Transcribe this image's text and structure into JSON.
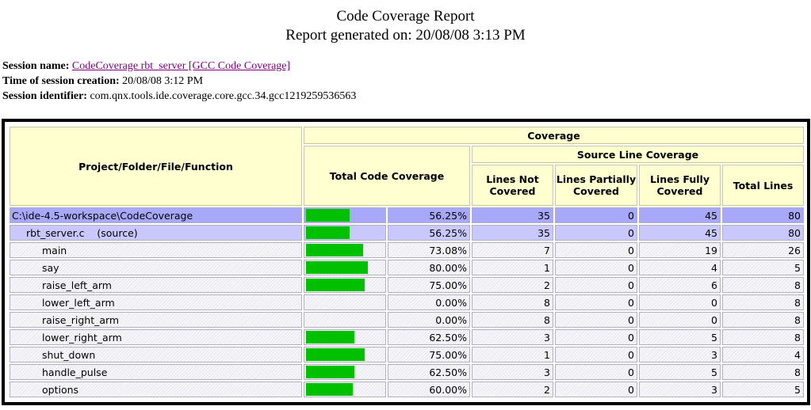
{
  "header": {
    "title": "Code Coverage Report",
    "generated": "Report generated on: 20/08/08 3:13 PM"
  },
  "session": {
    "name_label": "Session name:",
    "name": "CodeCoverage rbt_server [GCC Code Coverage]",
    "time_label": "Time of session creation:",
    "time": "20/08/08 3:12 PM",
    "id_label": "Session identifier:",
    "id": "com.qnx.tools.ide.coverage.core.gcc.34.gcc1219259536563"
  },
  "table": {
    "headers": {
      "project": "Project/Folder/File/Function",
      "coverage": "Coverage",
      "source": "Source Line Coverage",
      "total_coverage": "Total Code Coverage",
      "not_covered": "Lines Not Covered",
      "partial": "Lines Partially Covered",
      "fully": "Lines Fully Covered",
      "total": "Total Lines"
    },
    "rows": [
      {
        "name": "C:\\ide-4.5-workspace\\CodeCoverage",
        "coverage": {
          "value": 56.25,
          "label": "56.25%"
        },
        "not_covered": 35,
        "partial": 0,
        "fully": 45,
        "total": 80
      },
      {
        "name": "rbt_server.c    (source)",
        "coverage": {
          "value": 56.25,
          "label": "56.25%"
        },
        "not_covered": 35,
        "partial": 0,
        "fully": 45,
        "total": 80
      },
      {
        "name": "main",
        "coverage": {
          "value": 73.08,
          "label": "73.08%"
        },
        "not_covered": 7,
        "partial": 0,
        "fully": 19,
        "total": 26
      },
      {
        "name": "say",
        "coverage": {
          "value": 80,
          "label": "80.00%"
        },
        "not_covered": 1,
        "partial": 0,
        "fully": 4,
        "total": 5
      },
      {
        "name": "raise_left_arm",
        "coverage": {
          "value": 75,
          "label": "75.00%"
        },
        "not_covered": 2,
        "partial": 0,
        "fully": 6,
        "total": 8
      },
      {
        "name": "lower_left_arm",
        "coverage": {
          "value": 0,
          "label": "0.00%"
        },
        "not_covered": 8,
        "partial": 0,
        "fully": 0,
        "total": 8
      },
      {
        "name": "raise_right_arm",
        "coverage": {
          "value": 0,
          "label": "0.00%"
        },
        "not_covered": 8,
        "partial": 0,
        "fully": 0,
        "total": 8
      },
      {
        "name": "lower_right_arm",
        "coverage": {
          "value": 62.5,
          "label": "62.50%"
        },
        "not_covered": 3,
        "partial": 0,
        "fully": 5,
        "total": 8
      },
      {
        "name": "shut_down",
        "coverage": {
          "value": 75,
          "label": "75.00%"
        },
        "not_covered": 1,
        "partial": 0,
        "fully": 3,
        "total": 4
      },
      {
        "name": "handle_pulse",
        "coverage": {
          "value": 62.5,
          "label": "62.50%"
        },
        "not_covered": 3,
        "partial": 0,
        "fully": 5,
        "total": 8
      },
      {
        "name": "options",
        "coverage": {
          "value": 60,
          "label": "60.00%"
        },
        "not_covered": 2,
        "partial": 0,
        "fully": 3,
        "total": 5
      }
    ]
  }
}
